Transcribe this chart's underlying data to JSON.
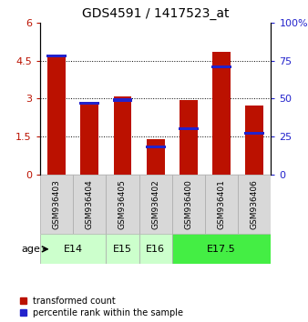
{
  "title": "GDS4591 / 1417523_at",
  "samples": [
    "GSM936403",
    "GSM936404",
    "GSM936405",
    "GSM936402",
    "GSM936400",
    "GSM936401",
    "GSM936406"
  ],
  "transformed_count": [
    4.75,
    2.8,
    3.08,
    1.4,
    2.93,
    4.85,
    2.72
  ],
  "percentile_rank": [
    0.78,
    0.47,
    0.49,
    0.18,
    0.3,
    0.71,
    0.27
  ],
  "age_groups": [
    {
      "label": "E14",
      "span": [
        0,
        2
      ],
      "color": "#ccffcc"
    },
    {
      "label": "E15",
      "span": [
        2,
        3
      ],
      "color": "#ccffcc"
    },
    {
      "label": "E16",
      "span": [
        3,
        4
      ],
      "color": "#ccffcc"
    },
    {
      "label": "E17.5",
      "span": [
        4,
        7
      ],
      "color": "#44ee44"
    }
  ],
  "ylim_left": [
    0,
    6
  ],
  "ylim_right": [
    0,
    100
  ],
  "yticks_left": [
    0,
    1.5,
    3,
    4.5,
    6
  ],
  "yticks_left_labels": [
    "0",
    "1.5",
    "3",
    "4.5",
    "6"
  ],
  "yticks_right": [
    0,
    25,
    50,
    75,
    100
  ],
  "yticks_right_labels": [
    "0",
    "25",
    "50",
    "75",
    "100%"
  ],
  "bar_color_red": "#bb1100",
  "bar_color_blue": "#2222cc",
  "bar_width": 0.55,
  "bg_color_sample": "#d8d8d8",
  "legend_red": "transformed count",
  "legend_blue": "percentile rank within the sample",
  "age_label": "age"
}
